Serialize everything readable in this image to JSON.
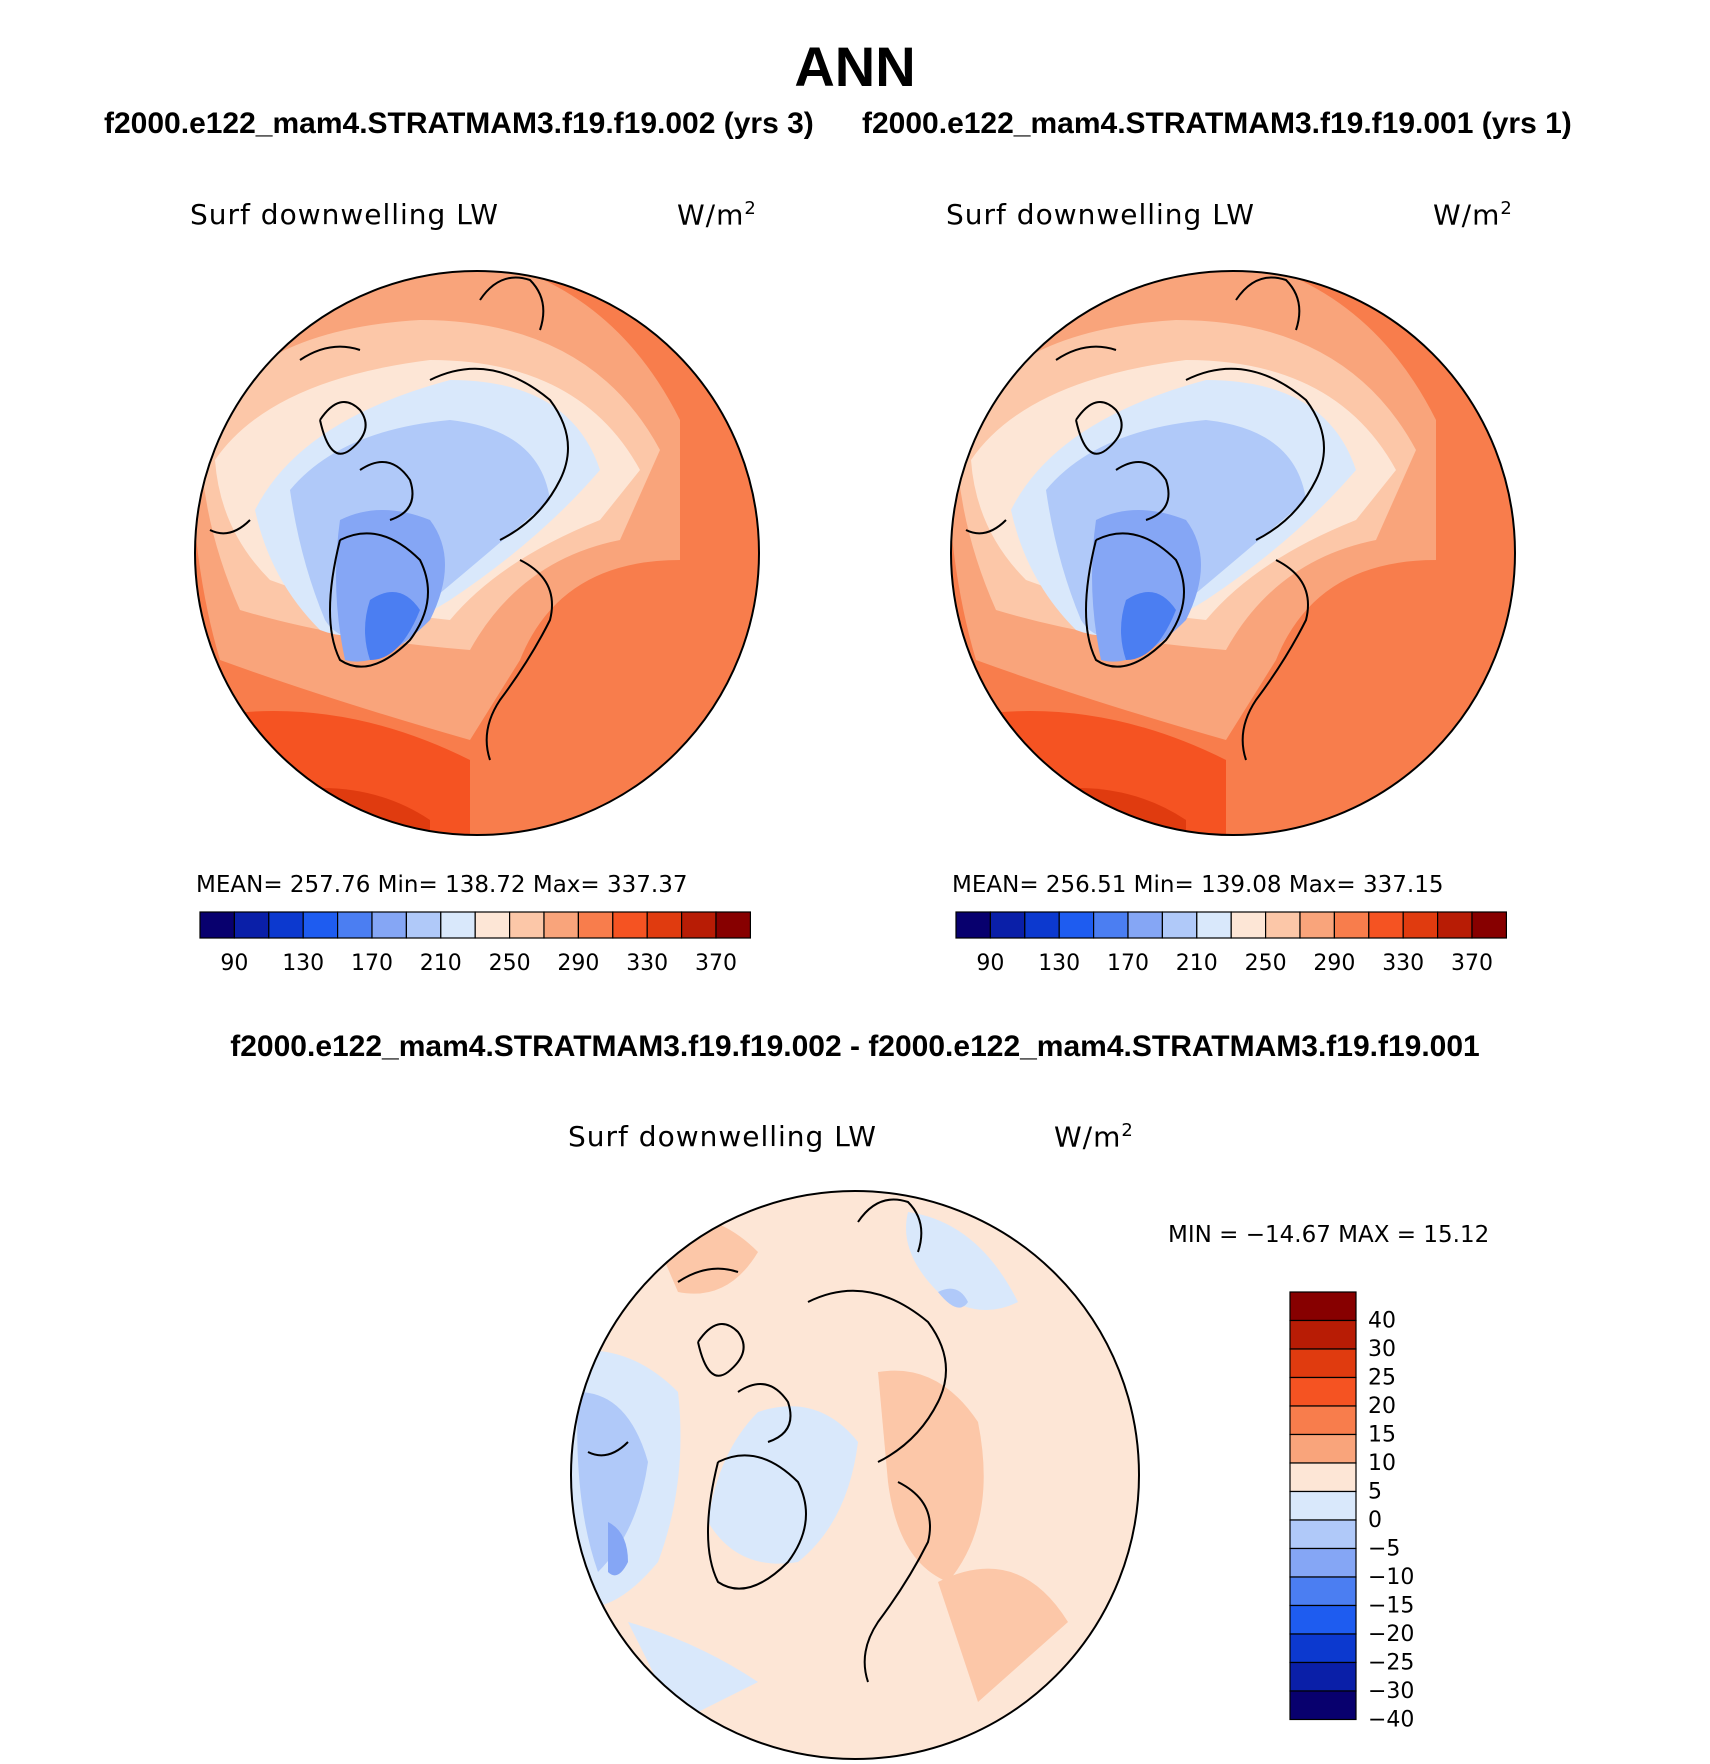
{
  "figure": {
    "title": "ANN",
    "top_left_case": "f2000.e122_mam4.STRATMAM3.f19.f19.002 (yrs 3)",
    "top_right_case": "f2000.e122_mam4.STRATMAM3.f19.f19.001 (yrs 1)",
    "diff_title": "f2000.e122_mam4.STRATMAM3.f19.f19.002 - f2000.e122_mam4.STRATMAM3.f19.f19.001"
  },
  "panels": [
    {
      "variable": "Surf  downwelling  LW",
      "units": "W/m",
      "units_sup": "2",
      "stats": "MEAN=  257.76    Min=  138.72    Max=  337.37"
    },
    {
      "variable": "Surf  downwelling  LW",
      "units": "W/m",
      "units_sup": "2",
      "stats": "MEAN=  256.51    Min=  139.08    Max=  337.15"
    },
    {
      "variable": "Surf  downwelling  LW",
      "units": "W/m",
      "units_sup": "2",
      "stats": "MIN  =  −14.67  MAX  =     15.12"
    }
  ],
  "colorbar_abs": {
    "colors": [
      "#08006e",
      "#0a1fa8",
      "#0c39cf",
      "#1e5cf0",
      "#4b7ef2",
      "#85a6f5",
      "#b0c9f9",
      "#d9e8fb",
      "#fde6d6",
      "#fcc7a8",
      "#f9a47b",
      "#f87d4c",
      "#f55322",
      "#e03b0f",
      "#b81c05",
      "#870000"
    ],
    "labels": [
      "90",
      "130",
      "170",
      "210",
      "250",
      "290",
      "330",
      "370"
    ]
  },
  "colorbar_diff": {
    "colors": [
      "#870000",
      "#b81c05",
      "#e03b0f",
      "#f55322",
      "#f87d4c",
      "#f9a47b",
      "#fde6d6",
      "#d9e8fb",
      "#b0c9f9",
      "#85a6f5",
      "#4b7ef2",
      "#1e5cf0",
      "#0c39cf",
      "#0a1fa8",
      "#08006e"
    ],
    "labels": [
      "40",
      "30",
      "25",
      "20",
      "15",
      "10",
      "5",
      "0",
      "−5",
      "−10",
      "−15",
      "−20",
      "−25",
      "−30",
      "−40"
    ]
  },
  "map_colors": {
    "c250": "#fde6d6",
    "c270": "#fcc7a8",
    "c290": "#f9a47b",
    "c310": "#f87d4c",
    "c330": "#f55322",
    "c350": "#e03b0f",
    "c210": "#d9e8fb",
    "c190": "#b0c9f9",
    "c170": "#85a6f5",
    "c150": "#4b7ef2",
    "c130": "#1e5cf0",
    "d_pos": "#fde6d6",
    "d_pos2": "#fcc7a8",
    "d_neg": "#d9e8fb",
    "d_neg2": "#b0c9f9",
    "d_neg3": "#85a6f5"
  }
}
